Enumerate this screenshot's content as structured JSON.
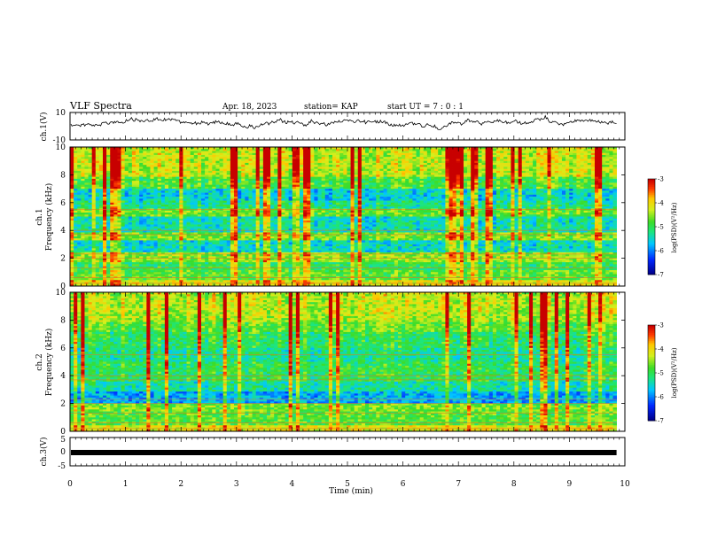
{
  "header": {
    "title": "VLF Spectra",
    "date": "Apr. 18, 2023",
    "station": "station= KAP",
    "start": "start  UT  =   7 : 0  : 1"
  },
  "chart_data": [
    {
      "type": "line",
      "name": "ch1-waveform",
      "ylabel": "ch.1(V)",
      "ylim": [
        -10,
        10
      ],
      "yticks": [
        "10",
        "-10"
      ],
      "xlim": [
        0,
        10
      ]
    },
    {
      "type": "heatmap",
      "name": "ch1-spectrogram",
      "ylabel": "ch.1\nFrequency (kHz)",
      "ylabel_lines": [
        "ch.1",
        "Frequency (kHz)"
      ],
      "ylim": [
        0,
        10
      ],
      "yticks": [
        "0",
        "2",
        "4",
        "6",
        "8",
        "10"
      ],
      "colorbar": {
        "label": "log(PSD)(V²/Hz)",
        "ticks": [
          "-3",
          "-4",
          "-5",
          "-6",
          "-7"
        ],
        "range": [
          -7,
          -3
        ]
      }
    },
    {
      "type": "heatmap",
      "name": "ch2-spectrogram",
      "ylabel_lines": [
        "ch.2",
        "Frequency (kHz)"
      ],
      "ylim": [
        0,
        10
      ],
      "yticks": [
        "0",
        "2",
        "4",
        "6",
        "8",
        "10"
      ],
      "colorbar": {
        "label": "log(PSD)(V²/Hz)",
        "ticks": [
          "-3",
          "-4",
          "-5",
          "-6",
          "-7"
        ],
        "range": [
          -7,
          -3
        ]
      }
    },
    {
      "type": "line",
      "name": "ch3-signal",
      "ylabel": "ch.3(V)",
      "ylim": [
        -5,
        5
      ],
      "yticks": [
        "5",
        "0",
        "-5"
      ],
      "xlim": [
        0,
        10
      ]
    }
  ],
  "xaxis": {
    "label": "Time  (min)",
    "ticks": [
      "0",
      "1",
      "2",
      "3",
      "4",
      "5",
      "6",
      "7",
      "8",
      "9",
      "10"
    ]
  },
  "colors": {
    "frame": "#000000",
    "trace": "#000000"
  }
}
